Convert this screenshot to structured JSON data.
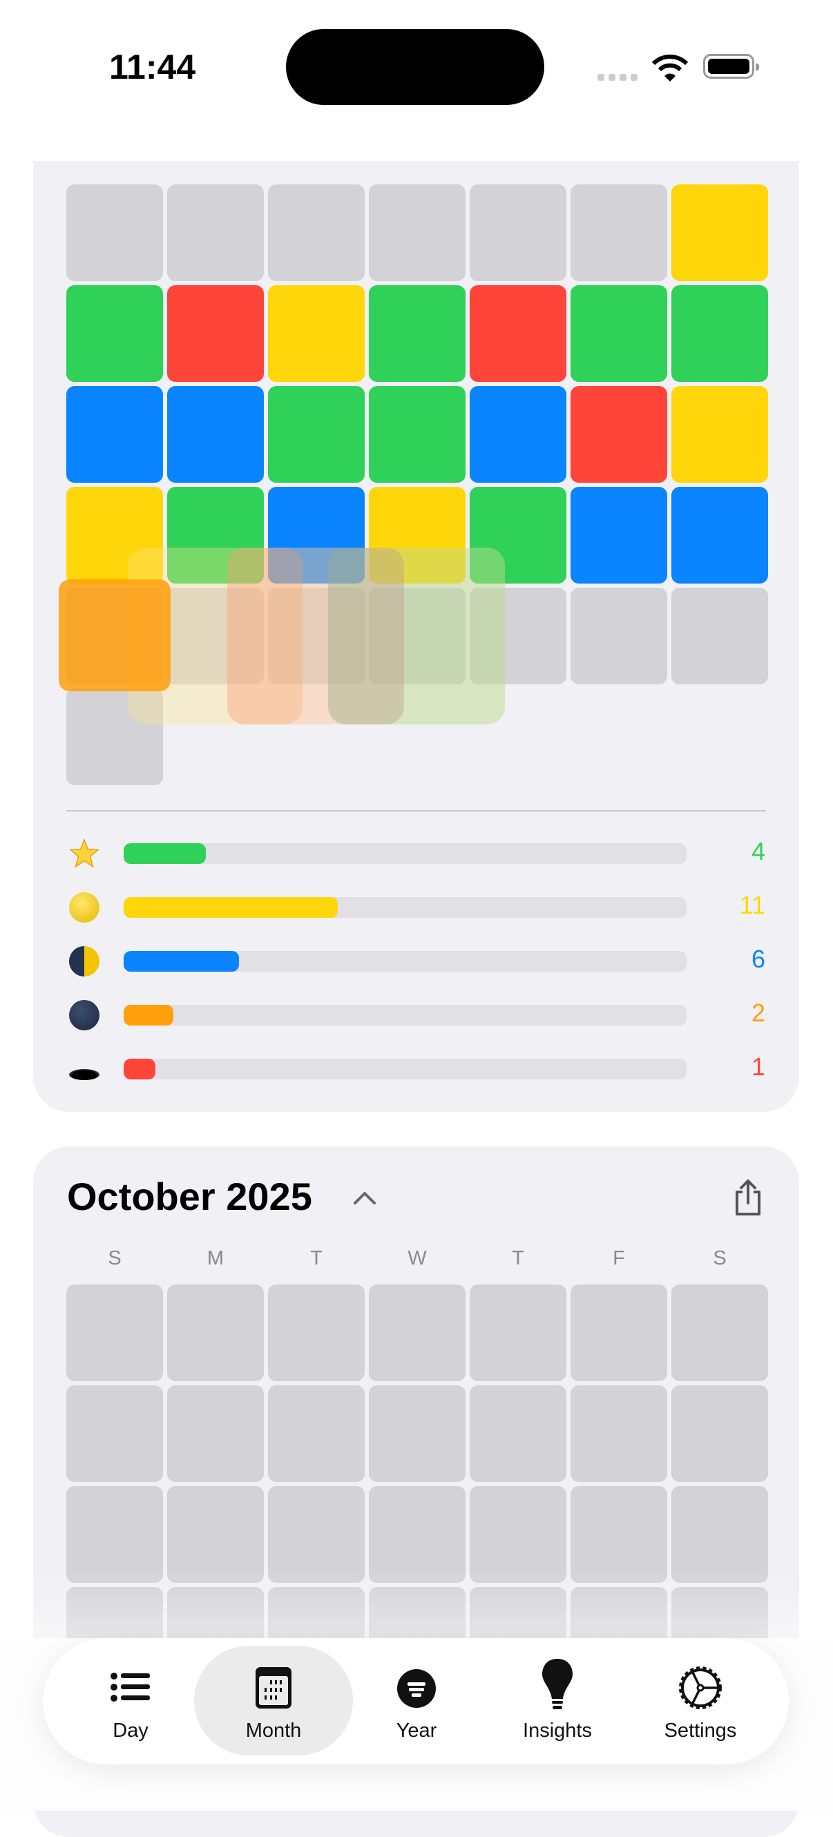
{
  "status_bar": {
    "time": "11:44",
    "battery_icon": "battery-full-icon",
    "wifi_icon": "wifi-icon",
    "signal_icon": "signal-dots-icon"
  },
  "colors": {
    "green": "#30d158",
    "red": "#ff453a",
    "yellow": "#ffd60a",
    "blue": "#0a84ff",
    "orange": "#ff9f0a",
    "empty": "#d2d2d7",
    "card": "#f0f0f5"
  },
  "weekdays": [
    "S",
    "M",
    "T",
    "W",
    "T",
    "F",
    "S"
  ],
  "previous_month": {
    "cells": [
      [
        "empty",
        "empty",
        "empty",
        "empty",
        "empty",
        "empty",
        "yellow"
      ],
      [
        "green",
        "red",
        "yellow",
        "green",
        "red",
        "green",
        "green"
      ],
      [
        "blue",
        "blue",
        "green",
        "green",
        "blue",
        "red",
        "yellow"
      ],
      [
        "yellow",
        "green",
        "blue",
        "yellow",
        "green",
        "blue",
        "blue"
      ],
      [
        "empty",
        "empty",
        "empty",
        "empty",
        "empty",
        "empty",
        "empty"
      ],
      [
        "empty"
      ]
    ],
    "stats": [
      {
        "icon": "star-icon",
        "color": "green",
        "count": "4",
        "fraction": 0.146
      },
      {
        "icon": "full-moon-icon",
        "color": "yellow",
        "count": "11",
        "fraction": 0.38
      },
      {
        "icon": "first-quarter-moon-icon",
        "color": "blue",
        "count": "6",
        "fraction": 0.205
      },
      {
        "icon": "new-moon-icon",
        "color": "orange",
        "count": "2",
        "fraction": 0.088
      },
      {
        "icon": "hole-icon",
        "color": "red",
        "count": "1",
        "fraction": 0.057
      }
    ]
  },
  "current_month": {
    "title": "October 2025",
    "collapse_icon": "chevron-up-icon",
    "share_icon": "share-icon",
    "cells": [
      [
        "empty",
        "empty",
        "empty",
        "empty",
        "empty",
        "empty",
        "empty"
      ],
      [
        "empty",
        "empty",
        "empty",
        "empty",
        "empty",
        "empty",
        "empty"
      ],
      [
        "empty",
        "empty",
        "empty",
        "empty",
        "empty",
        "empty",
        "empty"
      ],
      [
        "empty",
        "empty",
        "empty",
        "empty",
        "empty",
        "empty",
        "empty"
      ]
    ]
  },
  "tab_bar": {
    "selected": "Month",
    "items": [
      {
        "label": "Day",
        "icon": "list-icon"
      },
      {
        "label": "Month",
        "icon": "calendar-icon"
      },
      {
        "label": "Year",
        "icon": "year-circle-icon"
      },
      {
        "label": "Insights",
        "icon": "lightbulb-icon"
      },
      {
        "label": "Settings",
        "icon": "gear-icon"
      }
    ]
  }
}
